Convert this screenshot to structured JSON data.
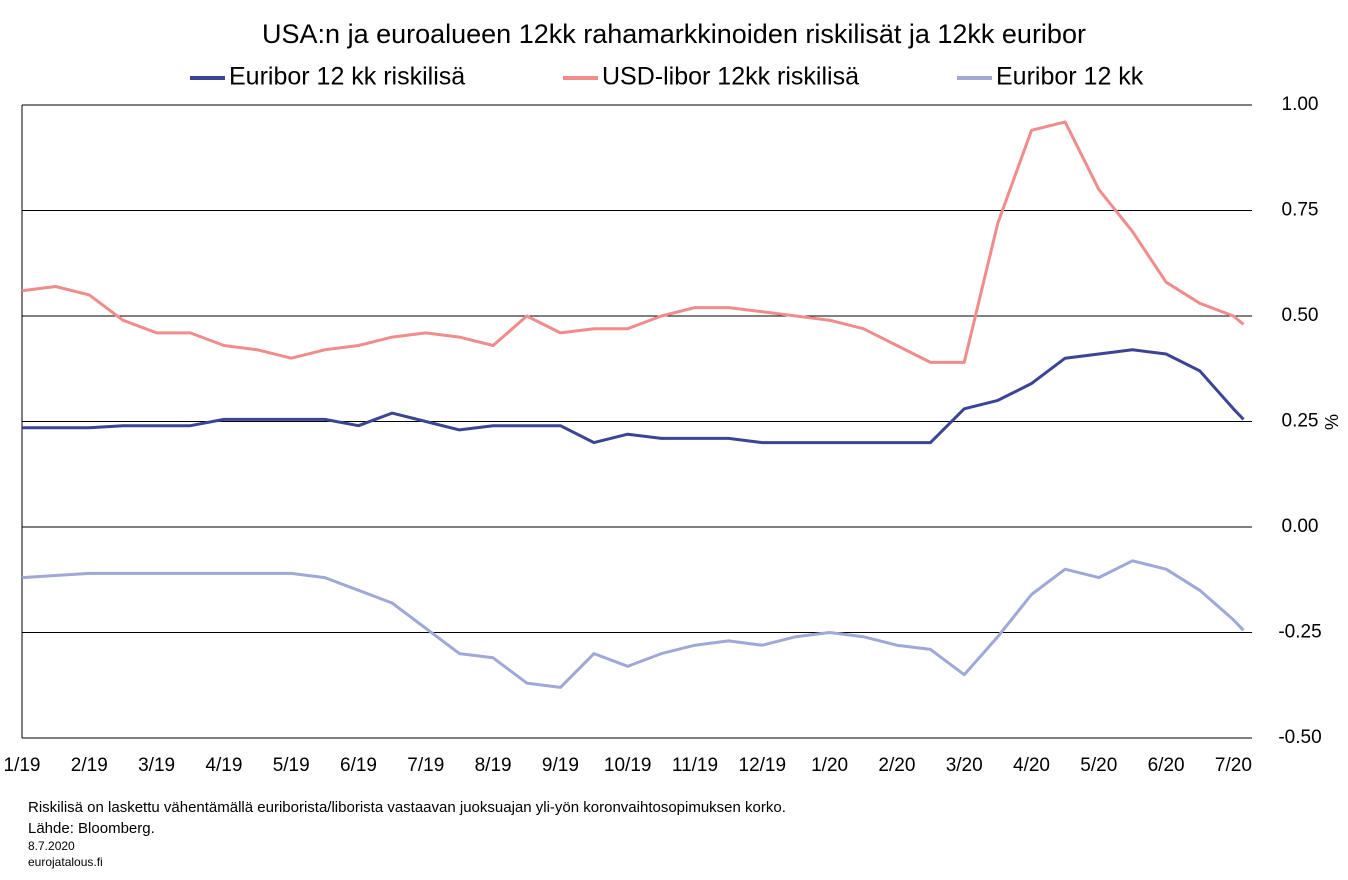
{
  "chart_data": {
    "type": "line",
    "title": "USA:n ja euroalueen 12kk rahamarkkinoiden riskilisät ja 12kk euribor",
    "y_label": "%",
    "footnotes": [
      "Riskilisä on laskettu vähentämällä euriborista/liborista vastaavan juoksuajan yli-yön koronvaihtosopimuksen korko.",
      "Lähde: Bloomberg.",
      "8.7.2020",
      "eurojatalous.fi"
    ],
    "x": [
      0,
      0.5,
      1,
      1.5,
      2,
      2.5,
      3,
      3.5,
      4,
      4.5,
      5,
      5.5,
      6,
      6.5,
      7,
      7.5,
      8,
      8.5,
      9,
      9.5,
      10,
      10.5,
      11,
      11.5,
      12,
      12.5,
      13,
      13.5,
      14,
      14.5,
      15,
      15.5,
      16,
      16.5,
      17,
      17.5,
      18,
      18.15
    ],
    "xlim": [
      0,
      18.3
    ],
    "xticks": [
      {
        "value": 0,
        "label": "1/19"
      },
      {
        "value": 1,
        "label": "2/19"
      },
      {
        "value": 2,
        "label": "3/19"
      },
      {
        "value": 3,
        "label": "4/19"
      },
      {
        "value": 4,
        "label": "5/19"
      },
      {
        "value": 5,
        "label": "6/19"
      },
      {
        "value": 6,
        "label": "7/19"
      },
      {
        "value": 7,
        "label": "8/19"
      },
      {
        "value": 8,
        "label": "9/19"
      },
      {
        "value": 9,
        "label": "10/19"
      },
      {
        "value": 10,
        "label": "11/19"
      },
      {
        "value": 11,
        "label": "12/19"
      },
      {
        "value": 12,
        "label": "1/20"
      },
      {
        "value": 13,
        "label": "2/20"
      },
      {
        "value": 14,
        "label": "3/20"
      },
      {
        "value": 15,
        "label": "4/20"
      },
      {
        "value": 16,
        "label": "5/20"
      },
      {
        "value": 17,
        "label": "6/20"
      },
      {
        "value": 18,
        "label": "7/20"
      }
    ],
    "ylim": [
      -0.5,
      1
    ],
    "yticks": [
      {
        "value": 1,
        "label": "1.00"
      },
      0.75,
      {
        "value": 0.5,
        "label": "0.50"
      },
      0.25,
      {
        "value": 0,
        "label": "0.00"
      },
      -0.25,
      {
        "value": -0.5,
        "label": "-0.50"
      }
    ],
    "grid": true,
    "series": [
      {
        "name": "Euribor 12 kk riskilisä",
        "color": "#3c4594",
        "values": [
          0.235,
          0.235,
          0.235,
          0.24,
          0.24,
          0.24,
          0.255,
          0.255,
          0.255,
          0.255,
          0.24,
          0.27,
          0.25,
          0.23,
          0.24,
          0.24,
          0.24,
          0.2,
          0.22,
          0.21,
          0.21,
          0.21,
          0.2,
          0.2,
          0.2,
          0.2,
          0.2,
          0.2,
          0.28,
          0.3,
          0.34,
          0.4,
          0.41,
          0.42,
          0.41,
          0.37,
          0.28,
          0.255
        ]
      },
      {
        "name": "USD-libor 12kk riskilisä",
        "color": "#f08c8c",
        "values": [
          0.56,
          0.57,
          0.55,
          0.49,
          0.46,
          0.46,
          0.43,
          0.42,
          0.4,
          0.42,
          0.43,
          0.45,
          0.46,
          0.45,
          0.43,
          0.5,
          0.46,
          0.47,
          0.47,
          0.5,
          0.52,
          0.52,
          0.51,
          0.5,
          0.49,
          0.47,
          0.43,
          0.39,
          0.39,
          0.72,
          0.94,
          0.96,
          0.8,
          0.7,
          0.58,
          0.53,
          0.5,
          0.48
        ]
      },
      {
        "name": "Euribor 12 kk",
        "color": "#a0a8d8",
        "values": [
          -0.12,
          -0.115,
          -0.11,
          -0.11,
          -0.11,
          -0.11,
          -0.11,
          -0.11,
          -0.11,
          -0.12,
          -0.15,
          -0.18,
          -0.24,
          -0.3,
          -0.31,
          -0.37,
          -0.38,
          -0.3,
          -0.33,
          -0.3,
          -0.28,
          -0.27,
          -0.28,
          -0.26,
          -0.25,
          -0.26,
          -0.28,
          -0.29,
          -0.35,
          -0.26,
          -0.16,
          -0.1,
          -0.12,
          -0.08,
          -0.1,
          -0.15,
          -0.22,
          -0.245
        ]
      }
    ]
  }
}
